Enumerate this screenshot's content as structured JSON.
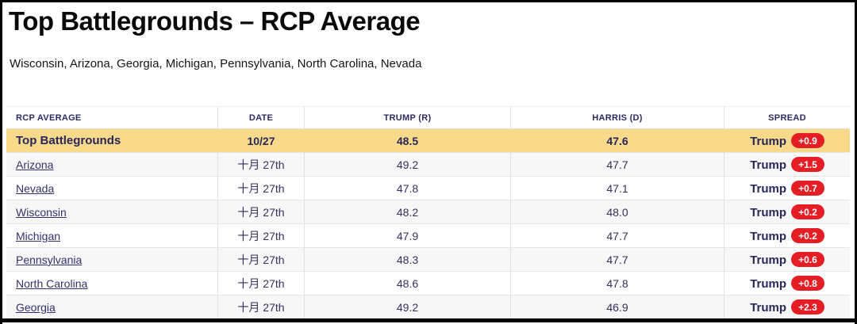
{
  "header": {
    "title": "Top Battlegrounds – RCP Average",
    "subtitle": "Wisconsin, Arizona, Georgia, Michigan, Pennsylvania, North Carolina, Nevada"
  },
  "table": {
    "columns": [
      "RCP AVERAGE",
      "DATE",
      "TRUMP (R)",
      "HARRIS (D)",
      "SPREAD"
    ],
    "summary_row": {
      "label": "Top Battlegrounds",
      "date": "10/27",
      "trump": "48.5",
      "harris": "47.6",
      "spread": {
        "leader": "Trump",
        "margin": "+0.9"
      }
    },
    "rows": [
      {
        "label": "Arizona",
        "date": "十月 27th",
        "trump": "49.2",
        "harris": "47.7",
        "spread": {
          "leader": "Trump",
          "margin": "+1.5"
        }
      },
      {
        "label": "Nevada",
        "date": "十月 27th",
        "trump": "47.8",
        "harris": "47.1",
        "spread": {
          "leader": "Trump",
          "margin": "+0.7"
        }
      },
      {
        "label": "Wisconsin",
        "date": "十月 27th",
        "trump": "48.2",
        "harris": "48.0",
        "spread": {
          "leader": "Trump",
          "margin": "+0.2"
        }
      },
      {
        "label": "Michigan",
        "date": "十月 27th",
        "trump": "47.9",
        "harris": "47.7",
        "spread": {
          "leader": "Trump",
          "margin": "+0.2"
        }
      },
      {
        "label": "Pennsylvania",
        "date": "十月 27th",
        "trump": "48.3",
        "harris": "47.7",
        "spread": {
          "leader": "Trump",
          "margin": "+0.6"
        }
      },
      {
        "label": "North Carolina",
        "date": "十月 27th",
        "trump": "48.6",
        "harris": "47.8",
        "spread": {
          "leader": "Trump",
          "margin": "+0.8"
        }
      },
      {
        "label": "Georgia",
        "date": "十月 27th",
        "trump": "49.2",
        "harris": "46.9",
        "spread": {
          "leader": "Trump",
          "margin": "+2.3"
        }
      }
    ]
  },
  "colors": {
    "highlight_row_bg": "#f9d98a",
    "alt_row_bg": "#f7f7f7",
    "navy_text": "#2b2b62",
    "link_color": "#32326e",
    "badge_bg": "#e51d25",
    "badge_text": "#ffffff",
    "grid_line": "#e2e2e2",
    "frame_border": "#000000"
  }
}
